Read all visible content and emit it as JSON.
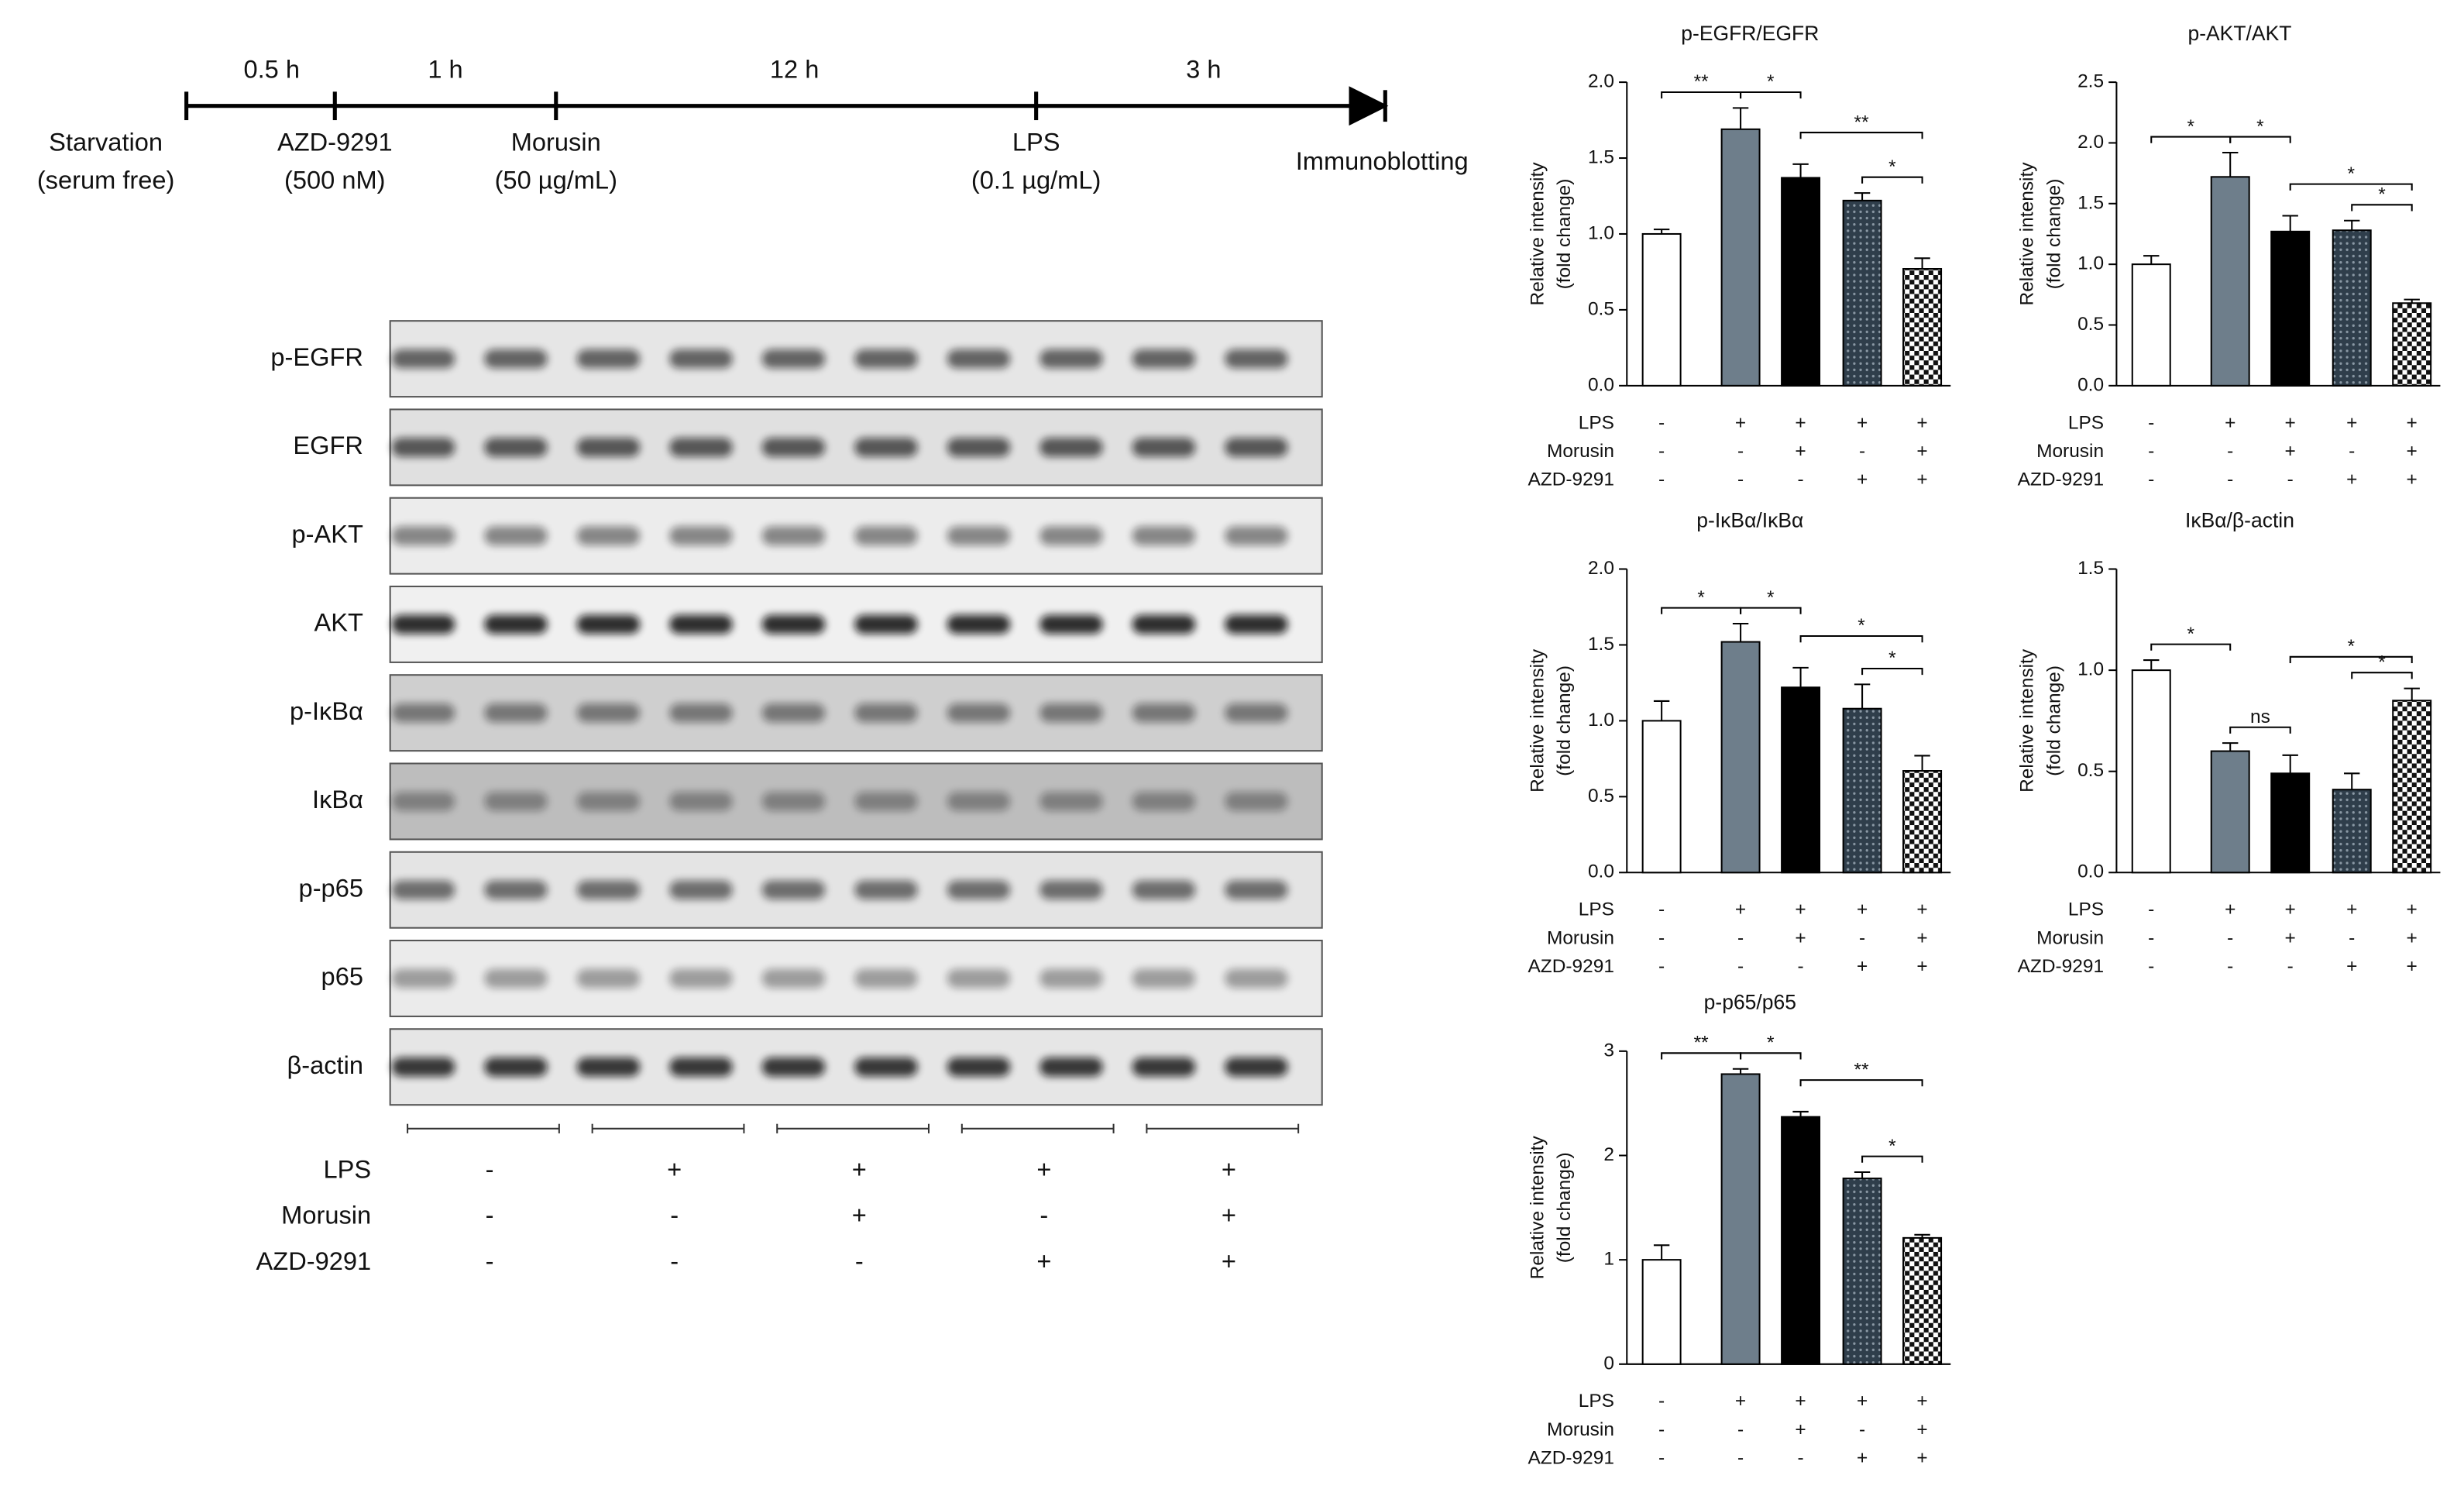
{
  "timeline": {
    "durations": [
      "0.5 h",
      "1 h",
      "12 h",
      "3 h"
    ],
    "events": [
      {
        "name": "Starvation",
        "detail": "(serum free)"
      },
      {
        "name": "AZD-9291",
        "detail": "(500 nM)"
      },
      {
        "name": "Morusin",
        "detail": "(50 µg/mL)"
      },
      {
        "name": "LPS",
        "detail": "(0.1 µg/mL)"
      },
      {
        "name": "Immunoblotting"
      }
    ]
  },
  "blot": {
    "rows": [
      "p-EGFR",
      "EGFR",
      "p-AKT",
      "AKT",
      "p-IκBα",
      "IκBα",
      "p-p65",
      "p65",
      "β-actin"
    ],
    "conditions": [
      {
        "name": "LPS",
        "values": [
          "-",
          "+",
          "+",
          "+",
          "+"
        ]
      },
      {
        "name": "Morusin",
        "values": [
          "-",
          "-",
          "+",
          "-",
          "+"
        ]
      },
      {
        "name": "AZD-9291",
        "values": [
          "-",
          "-",
          "-",
          "+",
          "+"
        ]
      }
    ]
  },
  "chart_data": [
    {
      "type": "bar",
      "title": "p-EGFR/EGFR",
      "ylabel": [
        "Relative intensity",
        "(fold change)"
      ],
      "values": [
        1.0,
        1.69,
        1.37,
        1.22,
        0.77
      ],
      "errors": [
        0.03,
        0.14,
        0.09,
        0.05,
        0.07
      ],
      "colors": [
        "#ffffff",
        "#6e7e8b",
        "#000000",
        "#2f3e4b",
        "#ffffff"
      ],
      "hatch": [
        null,
        null,
        null,
        "dots",
        "checker"
      ],
      "ylim": [
        0,
        2.0
      ],
      "yticks": [
        {
          "value": 0,
          "label": "0.0"
        },
        0.5,
        {
          "value": 1,
          "label": "1.0"
        },
        1.5,
        {
          "value": 2,
          "label": "2.0"
        }
      ],
      "significance": [
        {
          "from": 0,
          "to": 1,
          "label": "**"
        },
        {
          "from": 1,
          "to": 2,
          "label": "*"
        },
        {
          "from": 2,
          "to": 4,
          "label": "**"
        },
        {
          "from": 3,
          "to": 4,
          "label": "*"
        }
      ],
      "conditions": [
        {
          "name": "LPS",
          "values": [
            "-",
            "+",
            "+",
            "+",
            "+"
          ]
        },
        {
          "name": "Morusin",
          "values": [
            "-",
            "-",
            "+",
            "-",
            "+"
          ]
        },
        {
          "name": "AZD-9291",
          "values": [
            "-",
            "-",
            "-",
            "+",
            "+"
          ]
        }
      ]
    },
    {
      "type": "bar",
      "title": "p-AKT/AKT",
      "ylabel": [
        "Relative intensity",
        "(fold change)"
      ],
      "values": [
        1.0,
        1.72,
        1.27,
        1.28,
        0.68
      ],
      "errors": [
        0.07,
        0.2,
        0.13,
        0.08,
        0.03
      ],
      "colors": [
        "#ffffff",
        "#6e7e8b",
        "#000000",
        "#2f3e4b",
        "#ffffff"
      ],
      "hatch": [
        null,
        null,
        null,
        "dots",
        "checker"
      ],
      "ylim": [
        0,
        2.5
      ],
      "yticks": [
        {
          "value": 0,
          "label": "0.0"
        },
        0.5,
        {
          "value": 1,
          "label": "1.0"
        },
        1.5,
        {
          "value": 2,
          "label": "2.0"
        },
        2.5
      ],
      "significance": [
        {
          "from": 0,
          "to": 1,
          "label": "*"
        },
        {
          "from": 1,
          "to": 2,
          "label": "*"
        },
        {
          "from": 2,
          "to": 4,
          "label": "*"
        },
        {
          "from": 3,
          "to": 4,
          "label": "*"
        }
      ],
      "conditions": [
        {
          "name": "LPS",
          "values": [
            "-",
            "+",
            "+",
            "+",
            "+"
          ]
        },
        {
          "name": "Morusin",
          "values": [
            "-",
            "-",
            "+",
            "-",
            "+"
          ]
        },
        {
          "name": "AZD-9291",
          "values": [
            "-",
            "-",
            "-",
            "+",
            "+"
          ]
        }
      ]
    },
    {
      "type": "bar",
      "title": "p-IκBα/IκBα",
      "ylabel": [
        "Relative intensity",
        "(fold change)"
      ],
      "values": [
        1.0,
        1.52,
        1.22,
        1.08,
        0.67
      ],
      "errors": [
        0.13,
        0.12,
        0.13,
        0.16,
        0.1
      ],
      "colors": [
        "#ffffff",
        "#6e7e8b",
        "#000000",
        "#2f3e4b",
        "#ffffff"
      ],
      "hatch": [
        null,
        null,
        null,
        "dots",
        "checker"
      ],
      "ylim": [
        0,
        2.0
      ],
      "yticks": [
        {
          "value": 0,
          "label": "0.0"
        },
        0.5,
        {
          "value": 1,
          "label": "1.0"
        },
        1.5,
        {
          "value": 2,
          "label": "2.0"
        }
      ],
      "significance": [
        {
          "from": 0,
          "to": 1,
          "label": "*"
        },
        {
          "from": 1,
          "to": 2,
          "label": "*"
        },
        {
          "from": 2,
          "to": 4,
          "label": "*"
        },
        {
          "from": 3,
          "to": 4,
          "label": "*"
        }
      ],
      "conditions": [
        {
          "name": "LPS",
          "values": [
            "-",
            "+",
            "+",
            "+",
            "+"
          ]
        },
        {
          "name": "Morusin",
          "values": [
            "-",
            "-",
            "+",
            "-",
            "+"
          ]
        },
        {
          "name": "AZD-9291",
          "values": [
            "-",
            "-",
            "-",
            "+",
            "+"
          ]
        }
      ]
    },
    {
      "type": "bar",
      "title": "IκBα/β-actin",
      "ylabel": [
        "Relative intensity",
        "(fold change)"
      ],
      "values": [
        1.0,
        0.6,
        0.49,
        0.41,
        0.85
      ],
      "errors": [
        0.05,
        0.04,
        0.09,
        0.08,
        0.06
      ],
      "colors": [
        "#ffffff",
        "#6e7e8b",
        "#000000",
        "#2f3e4b",
        "#ffffff"
      ],
      "hatch": [
        null,
        null,
        null,
        "dots",
        "checker"
      ],
      "ylim": [
        0,
        1.5
      ],
      "yticks": [
        {
          "value": 0,
          "label": "0.0"
        },
        0.5,
        {
          "value": 1,
          "label": "1.0"
        },
        1.5
      ],
      "significance": [
        {
          "from": 0,
          "to": 1,
          "label": "*"
        },
        {
          "from": 1,
          "to": 2,
          "label": "ns"
        },
        {
          "from": 2,
          "to": 4,
          "label": "*"
        },
        {
          "from": 3,
          "to": 4,
          "label": "*"
        }
      ],
      "conditions": [
        {
          "name": "LPS",
          "values": [
            "-",
            "+",
            "+",
            "+",
            "+"
          ]
        },
        {
          "name": "Morusin",
          "values": [
            "-",
            "-",
            "+",
            "-",
            "+"
          ]
        },
        {
          "name": "AZD-9291",
          "values": [
            "-",
            "-",
            "-",
            "+",
            "+"
          ]
        }
      ]
    },
    {
      "type": "bar",
      "title": "p-p65/p65",
      "ylabel": [
        "Relative intensity",
        "(fold change)"
      ],
      "values": [
        1.0,
        2.78,
        2.37,
        1.78,
        1.21
      ],
      "errors": [
        0.14,
        0.05,
        0.05,
        0.06,
        0.03
      ],
      "colors": [
        "#ffffff",
        "#6e7e8b",
        "#000000",
        "#2f3e4b",
        "#ffffff"
      ],
      "hatch": [
        null,
        null,
        null,
        "dots",
        "checker"
      ],
      "ylim": [
        0,
        3
      ],
      "yticks": [
        0,
        1,
        2,
        3
      ],
      "significance": [
        {
          "from": 0,
          "to": 1,
          "label": "**"
        },
        {
          "from": 1,
          "to": 2,
          "label": "*"
        },
        {
          "from": 2,
          "to": 4,
          "label": "**"
        },
        {
          "from": 3,
          "to": 4,
          "label": "*"
        }
      ],
      "conditions": [
        {
          "name": "LPS",
          "values": [
            "-",
            "+",
            "+",
            "+",
            "+"
          ]
        },
        {
          "name": "Morusin",
          "values": [
            "-",
            "-",
            "+",
            "-",
            "+"
          ]
        },
        {
          "name": "AZD-9291",
          "values": [
            "-",
            "-",
            "-",
            "+",
            "+"
          ]
        }
      ]
    }
  ]
}
